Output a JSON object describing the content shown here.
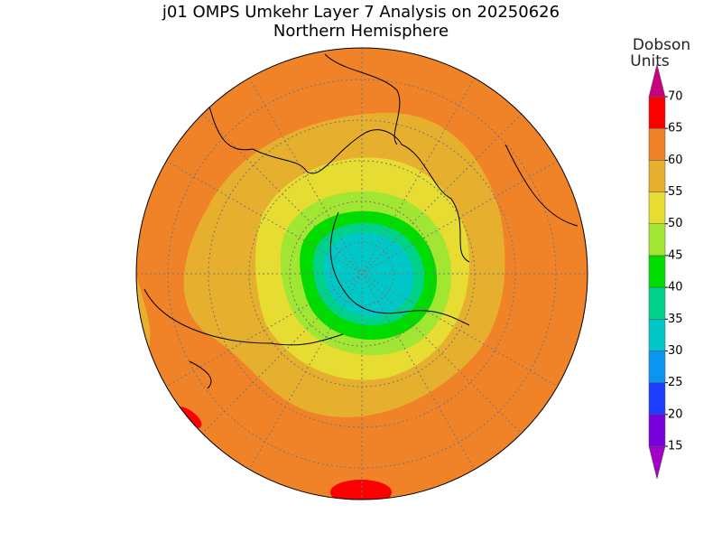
{
  "title": "j01 OMPS Umkehr Layer 7 Analysis on 20250626",
  "subtitle": "Northern Hemisphere",
  "colorbar": {
    "label": [
      "Dobson",
      "Units"
    ],
    "levels": [
      15,
      20,
      25,
      30,
      35,
      40,
      45,
      50,
      55,
      60,
      65,
      70
    ],
    "colors": [
      "#a000c8",
      "#7800dc",
      "#1e3cff",
      "#0a96f0",
      "#00c8c8",
      "#00d28c",
      "#00dc00",
      "#a0e632",
      "#e6dc32",
      "#e6af2d",
      "#f08228",
      "#fa0000",
      "#c8007f"
    ]
  }
}
